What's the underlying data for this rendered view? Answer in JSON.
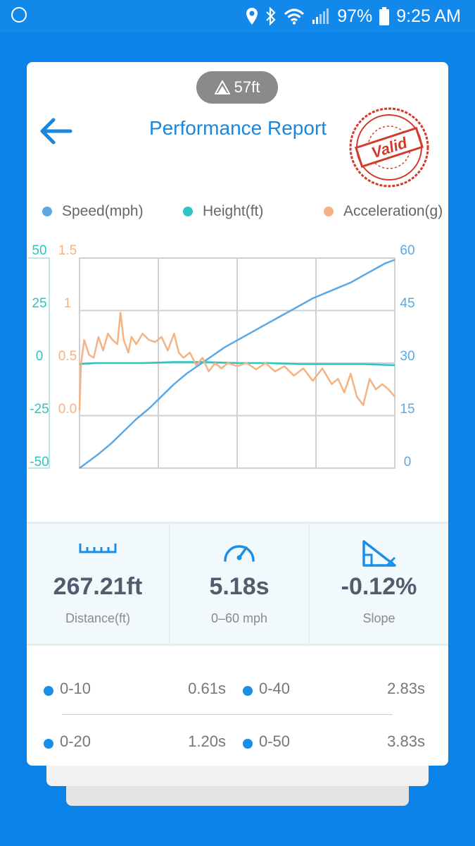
{
  "status_bar": {
    "battery": "97%",
    "time": "9:25 AM"
  },
  "header": {
    "altitude_badge": "57ft",
    "title": "Performance Report",
    "stamp_text": "Valid"
  },
  "colors": {
    "speed": "#5aa9e6",
    "height": "#2ec4c0",
    "acceleration": "#f6b282",
    "accent": "#1a86dc"
  },
  "legend": [
    {
      "label": "Speed(mph)",
      "color": "#5aa9e6"
    },
    {
      "label": "Height(ft)",
      "color": "#2ec4c0"
    },
    {
      "label": "Acceleration(g)",
      "color": "#f6b282"
    }
  ],
  "chart_data": {
    "type": "line",
    "grid": true,
    "x_divisions": 4,
    "axes": {
      "height_ticks": [
        "50",
        "25",
        "0",
        "-25",
        "-50"
      ],
      "accel_ticks": [
        "1.5",
        "1",
        "0.5",
        "0.0"
      ],
      "speed_ticks": [
        "60",
        "45",
        "30",
        "15",
        "0"
      ]
    },
    "ranges": {
      "height": [
        -50,
        50
      ],
      "acceleration": [
        -0.5,
        1.5
      ],
      "speed": [
        0,
        60
      ],
      "x": [
        0,
        1
      ]
    },
    "series": [
      {
        "name": "Speed(mph)",
        "axis": "speed",
        "x": [
          0,
          0.03,
          0.06,
          0.1,
          0.14,
          0.18,
          0.22,
          0.26,
          0.3,
          0.34,
          0.38,
          0.42,
          0.46,
          0.5,
          0.54,
          0.58,
          0.62,
          0.66,
          0.7,
          0.74,
          0.78,
          0.82,
          0.86,
          0.9,
          0.94,
          0.97,
          1.0
        ],
        "values": [
          0,
          2,
          4,
          7,
          10.5,
          14,
          17,
          20.5,
          24,
          27,
          29.5,
          32,
          34.5,
          36.5,
          38.5,
          40.5,
          42.5,
          44.5,
          46.5,
          48.5,
          50,
          51.5,
          53,
          55,
          57,
          58.5,
          59.5
        ]
      },
      {
        "name": "Height(ft)",
        "axis": "height",
        "x": [
          0,
          0.05,
          0.2,
          0.3,
          0.4,
          0.5,
          0.6,
          0.7,
          0.8,
          0.9,
          1.0
        ],
        "values": [
          -0.5,
          0,
          0,
          0.5,
          0.5,
          0,
          0,
          -0.5,
          -0.5,
          -0.5,
          -1
        ]
      },
      {
        "name": "Acceleration(g)",
        "axis": "acceleration",
        "x": [
          0,
          0.005,
          0.015,
          0.03,
          0.045,
          0.06,
          0.075,
          0.09,
          0.105,
          0.12,
          0.13,
          0.14,
          0.155,
          0.165,
          0.18,
          0.2,
          0.22,
          0.24,
          0.26,
          0.28,
          0.3,
          0.315,
          0.33,
          0.35,
          0.37,
          0.39,
          0.41,
          0.43,
          0.45,
          0.47,
          0.5,
          0.53,
          0.56,
          0.59,
          0.62,
          0.65,
          0.68,
          0.71,
          0.74,
          0.77,
          0.8,
          0.82,
          0.84,
          0.86,
          0.88,
          0.9,
          0.92,
          0.94,
          0.96,
          0.98,
          1.0
        ],
        "values": [
          0.05,
          0.5,
          0.72,
          0.58,
          0.55,
          0.75,
          0.62,
          0.78,
          0.72,
          0.68,
          0.98,
          0.72,
          0.6,
          0.75,
          0.68,
          0.78,
          0.72,
          0.7,
          0.75,
          0.62,
          0.78,
          0.6,
          0.55,
          0.6,
          0.48,
          0.55,
          0.42,
          0.5,
          0.45,
          0.5,
          0.47,
          0.5,
          0.44,
          0.5,
          0.42,
          0.47,
          0.38,
          0.45,
          0.33,
          0.45,
          0.3,
          0.35,
          0.22,
          0.4,
          0.18,
          0.1,
          0.35,
          0.25,
          0.3,
          0.25,
          0.18
        ]
      }
    ]
  },
  "stats": [
    {
      "value": "267.21ft",
      "label": "Distance(ft)",
      "icon": "ruler-icon"
    },
    {
      "value": "5.18s",
      "label": "0–60 mph",
      "icon": "speedometer-icon"
    },
    {
      "value": "-0.12%",
      "label": "Slope",
      "icon": "slope-icon"
    }
  ],
  "splits": [
    {
      "label": "0-10",
      "time": "0.61s"
    },
    {
      "label": "0-40",
      "time": "2.83s"
    },
    {
      "label": "0-20",
      "time": "1.20s"
    },
    {
      "label": "0-50",
      "time": "3.83s"
    }
  ]
}
